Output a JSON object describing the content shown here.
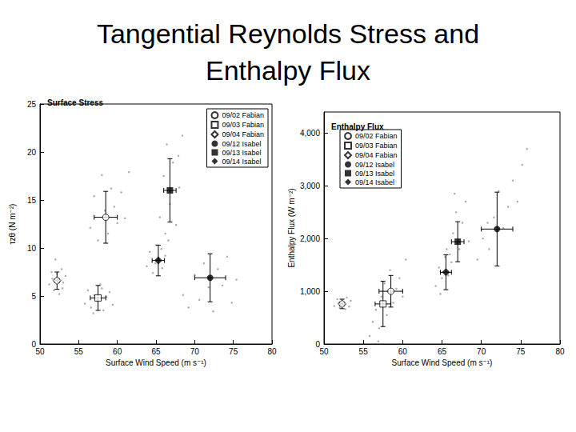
{
  "title": "Tangential Reynolds Stress and\nEnthalpy Flux",
  "chart_data": [
    {
      "type": "scatter",
      "title": "Surface Stress",
      "x_label": "Surface Wind Speed (m s⁻¹)",
      "y_label": "τzθ (N m⁻²)",
      "xlim": [
        50,
        80
      ],
      "xticks": [
        50,
        55,
        60,
        65,
        70,
        75,
        80
      ],
      "ylim": [
        0,
        25
      ],
      "yticks": [
        0,
        5,
        10,
        15,
        20,
        25
      ],
      "grid": false,
      "legend": "upper right",
      "series": [
        {
          "color": "#999999",
          "marker": "dot",
          "values": [
            [
              51.2,
              6.2
            ],
            [
              51.5,
              7.5
            ],
            [
              51.8,
              5.6
            ],
            [
              52,
              8.8
            ],
            [
              52.3,
              6.9
            ],
            [
              52.5,
              5.2
            ],
            [
              52.8,
              7.8
            ],
            [
              53,
              6.4
            ],
            [
              53.3,
              7.1
            ],
            [
              51.6,
              6.8
            ],
            [
              52.9,
              5.8
            ],
            [
              52.2,
              7.3
            ],
            [
              55.8,
              4.2
            ],
            [
              56.2,
              5.6
            ],
            [
              56.6,
              3.8
            ],
            [
              57,
              5.1
            ],
            [
              57.4,
              4.5
            ],
            [
              57.8,
              6.2
            ],
            [
              58.2,
              3.5
            ],
            [
              58.6,
              4.9
            ],
            [
              59,
              5.4
            ],
            [
              59.4,
              4.1
            ],
            [
              56.9,
              3.2
            ],
            [
              58,
              5.8
            ],
            [
              56.5,
              12.1
            ],
            [
              57,
              15.4
            ],
            [
              57.5,
              10.8
            ],
            [
              58,
              17.6
            ],
            [
              58.4,
              13.9
            ],
            [
              58.8,
              11.5
            ],
            [
              59.2,
              16.2
            ],
            [
              59.6,
              14.3
            ],
            [
              60,
              12.6
            ],
            [
              60.5,
              15.8
            ],
            [
              61,
              13.1
            ],
            [
              61.5,
              17.9
            ],
            [
              63.8,
              8.1
            ],
            [
              64.2,
              9.6
            ],
            [
              64.6,
              7.4
            ],
            [
              65,
              10.3
            ],
            [
              65.4,
              8.8
            ],
            [
              65.8,
              7.9
            ],
            [
              66.2,
              9.2
            ],
            [
              66.6,
              10.8
            ],
            [
              64.9,
              8.4
            ],
            [
              65.7,
              9.9
            ],
            [
              65.5,
              13.2
            ],
            [
              66,
              17.5
            ],
            [
              66.4,
              20.8
            ],
            [
              66.8,
              14.6
            ],
            [
              67.2,
              18.9
            ],
            [
              67.6,
              12.4
            ],
            [
              68,
              16.3
            ],
            [
              68.4,
              21.7
            ],
            [
              66.2,
              11.5
            ],
            [
              67.9,
              19.6
            ],
            [
              68.5,
              5.1
            ],
            [
              69.2,
              3.8
            ],
            [
              70,
              7.2
            ],
            [
              70.6,
              4.6
            ],
            [
              71.2,
              8.4
            ],
            [
              71.8,
              5.9
            ],
            [
              72.4,
              3.4
            ],
            [
              73,
              7.8
            ],
            [
              73.6,
              6.1
            ],
            [
              74.2,
              9.1
            ],
            [
              74.8,
              4.3
            ],
            [
              75.4,
              6.7
            ]
          ]
        },
        {
          "name": "09/02 Fabian",
          "color": "#000000",
          "marker": "open_circle",
          "values": [
            [
              58.5,
              13.2
            ]
          ],
          "x_err": [
            1.5
          ],
          "y_err": [
            2.7
          ]
        },
        {
          "name": "09/03 Fabian",
          "color": "#000000",
          "marker": "open_square",
          "values": [
            [
              57.5,
              4.8
            ]
          ],
          "x_err": [
            1.0
          ],
          "y_err": [
            1.3
          ]
        },
        {
          "name": "09/04 Fabian",
          "color": "#000000",
          "marker": "open_diamond",
          "values": [
            [
              52.2,
              6.6
            ]
          ],
          "x_err": [
            0.3
          ],
          "y_err": [
            0.9
          ]
        },
        {
          "name": "09/12 Isabel",
          "color": "#000000",
          "marker": "filled_circle",
          "values": [
            [
              72.0,
              6.9
            ]
          ],
          "x_err": [
            2.0
          ],
          "y_err": [
            2.5
          ]
        },
        {
          "name": "09/13 Isabel",
          "color": "#000000",
          "marker": "filled_square",
          "values": [
            [
              66.8,
              16.0
            ]
          ],
          "x_err": [
            0.8
          ],
          "y_err": [
            3.3
          ]
        },
        {
          "name": "09/14 Isabel",
          "color": "#000000",
          "marker": "filled_diamond",
          "values": [
            [
              65.3,
              8.7
            ]
          ],
          "x_err": [
            0.8
          ],
          "y_err": [
            1.6
          ]
        }
      ]
    },
    {
      "type": "scatter",
      "title": "Enthalpy Flux",
      "x_label": "Surface Wind Speed (m s⁻¹)",
      "y_label": "Enthalpy Flux (W m⁻²)",
      "xlim": [
        50,
        80
      ],
      "xticks": [
        50,
        55,
        60,
        65,
        70,
        75,
        80
      ],
      "ylim": [
        0,
        4400
      ],
      "yticks": [
        0,
        1000,
        2000,
        3000,
        4000
      ],
      "grid": false,
      "legend": "upper left",
      "series": [
        {
          "color": "#999999",
          "marker": "dot",
          "values": [
            [
              51.3,
              720
            ],
            [
              51.7,
              850
            ],
            [
              52,
              690
            ],
            [
              52.3,
              800
            ],
            [
              52.6,
              760
            ],
            [
              52.9,
              880
            ],
            [
              53.2,
              710
            ],
            [
              51.9,
              780
            ],
            [
              52.7,
              660
            ],
            [
              53.4,
              820
            ],
            [
              55.8,
              150
            ],
            [
              56.2,
              420
            ],
            [
              56.6,
              650
            ],
            [
              57,
              300
            ],
            [
              57.3,
              900
            ],
            [
              57.7,
              1150
            ],
            [
              58,
              550
            ],
            [
              58.4,
              1400
            ],
            [
              58.8,
              780
            ],
            [
              59.2,
              1050
            ],
            [
              59.6,
              1250
            ],
            [
              60,
              900
            ],
            [
              60.4,
              1600
            ],
            [
              56.9,
              50
            ],
            [
              58.1,
              1000
            ],
            [
              64.2,
              1100
            ],
            [
              64.6,
              1450
            ],
            [
              65,
              1250
            ],
            [
              65.4,
              1650
            ],
            [
              65.8,
              1300
            ],
            [
              66.2,
              1550
            ],
            [
              64.8,
              950
            ],
            [
              65.6,
              1800
            ],
            [
              66,
              1700
            ],
            [
              66.4,
              2100
            ],
            [
              66.8,
              2500
            ],
            [
              67.2,
              1800
            ],
            [
              67.6,
              2300
            ],
            [
              68,
              2700
            ],
            [
              68.4,
              1950
            ],
            [
              66.6,
              2850
            ],
            [
              69.5,
              1600
            ],
            [
              70.2,
              2000
            ],
            [
              71,
              1800
            ],
            [
              71.6,
              2400
            ],
            [
              72.2,
              2900
            ],
            [
              72.8,
              2200
            ],
            [
              73.4,
              2600
            ],
            [
              74,
              3100
            ],
            [
              74.6,
              2700
            ],
            [
              75.2,
              3400
            ],
            [
              75.8,
              3700
            ],
            [
              70.8,
              2300
            ]
          ]
        },
        {
          "name": "09/02 Fabian",
          "color": "#000000",
          "marker": "open_circle",
          "values": [
            [
              58.5,
              1000
            ]
          ],
          "x_err": [
            1.5
          ],
          "y_err": [
            300
          ]
        },
        {
          "name": "09/03 Fabian",
          "color": "#000000",
          "marker": "open_square",
          "values": [
            [
              57.5,
              760
            ]
          ],
          "x_err": [
            1.0
          ],
          "y_err": [
            430
          ]
        },
        {
          "name": "09/04 Fabian",
          "color": "#000000",
          "marker": "open_diamond",
          "values": [
            [
              52.3,
              760
            ]
          ],
          "x_err": [
            0.3
          ],
          "y_err": [
            90
          ]
        },
        {
          "name": "09/12 Isabel",
          "color": "#000000",
          "marker": "filled_circle",
          "values": [
            [
              72.0,
              2180
            ]
          ],
          "x_err": [
            2.0
          ],
          "y_err": [
            700
          ]
        },
        {
          "name": "09/13 Isabel",
          "color": "#000000",
          "marker": "filled_square",
          "values": [
            [
              67.0,
              1940
            ]
          ],
          "x_err": [
            0.8
          ],
          "y_err": [
            380
          ]
        },
        {
          "name": "09/14 Isabel",
          "color": "#000000",
          "marker": "filled_diamond",
          "values": [
            [
              65.5,
              1360
            ]
          ],
          "x_err": [
            0.7
          ],
          "y_err": [
            330
          ]
        }
      ]
    }
  ]
}
